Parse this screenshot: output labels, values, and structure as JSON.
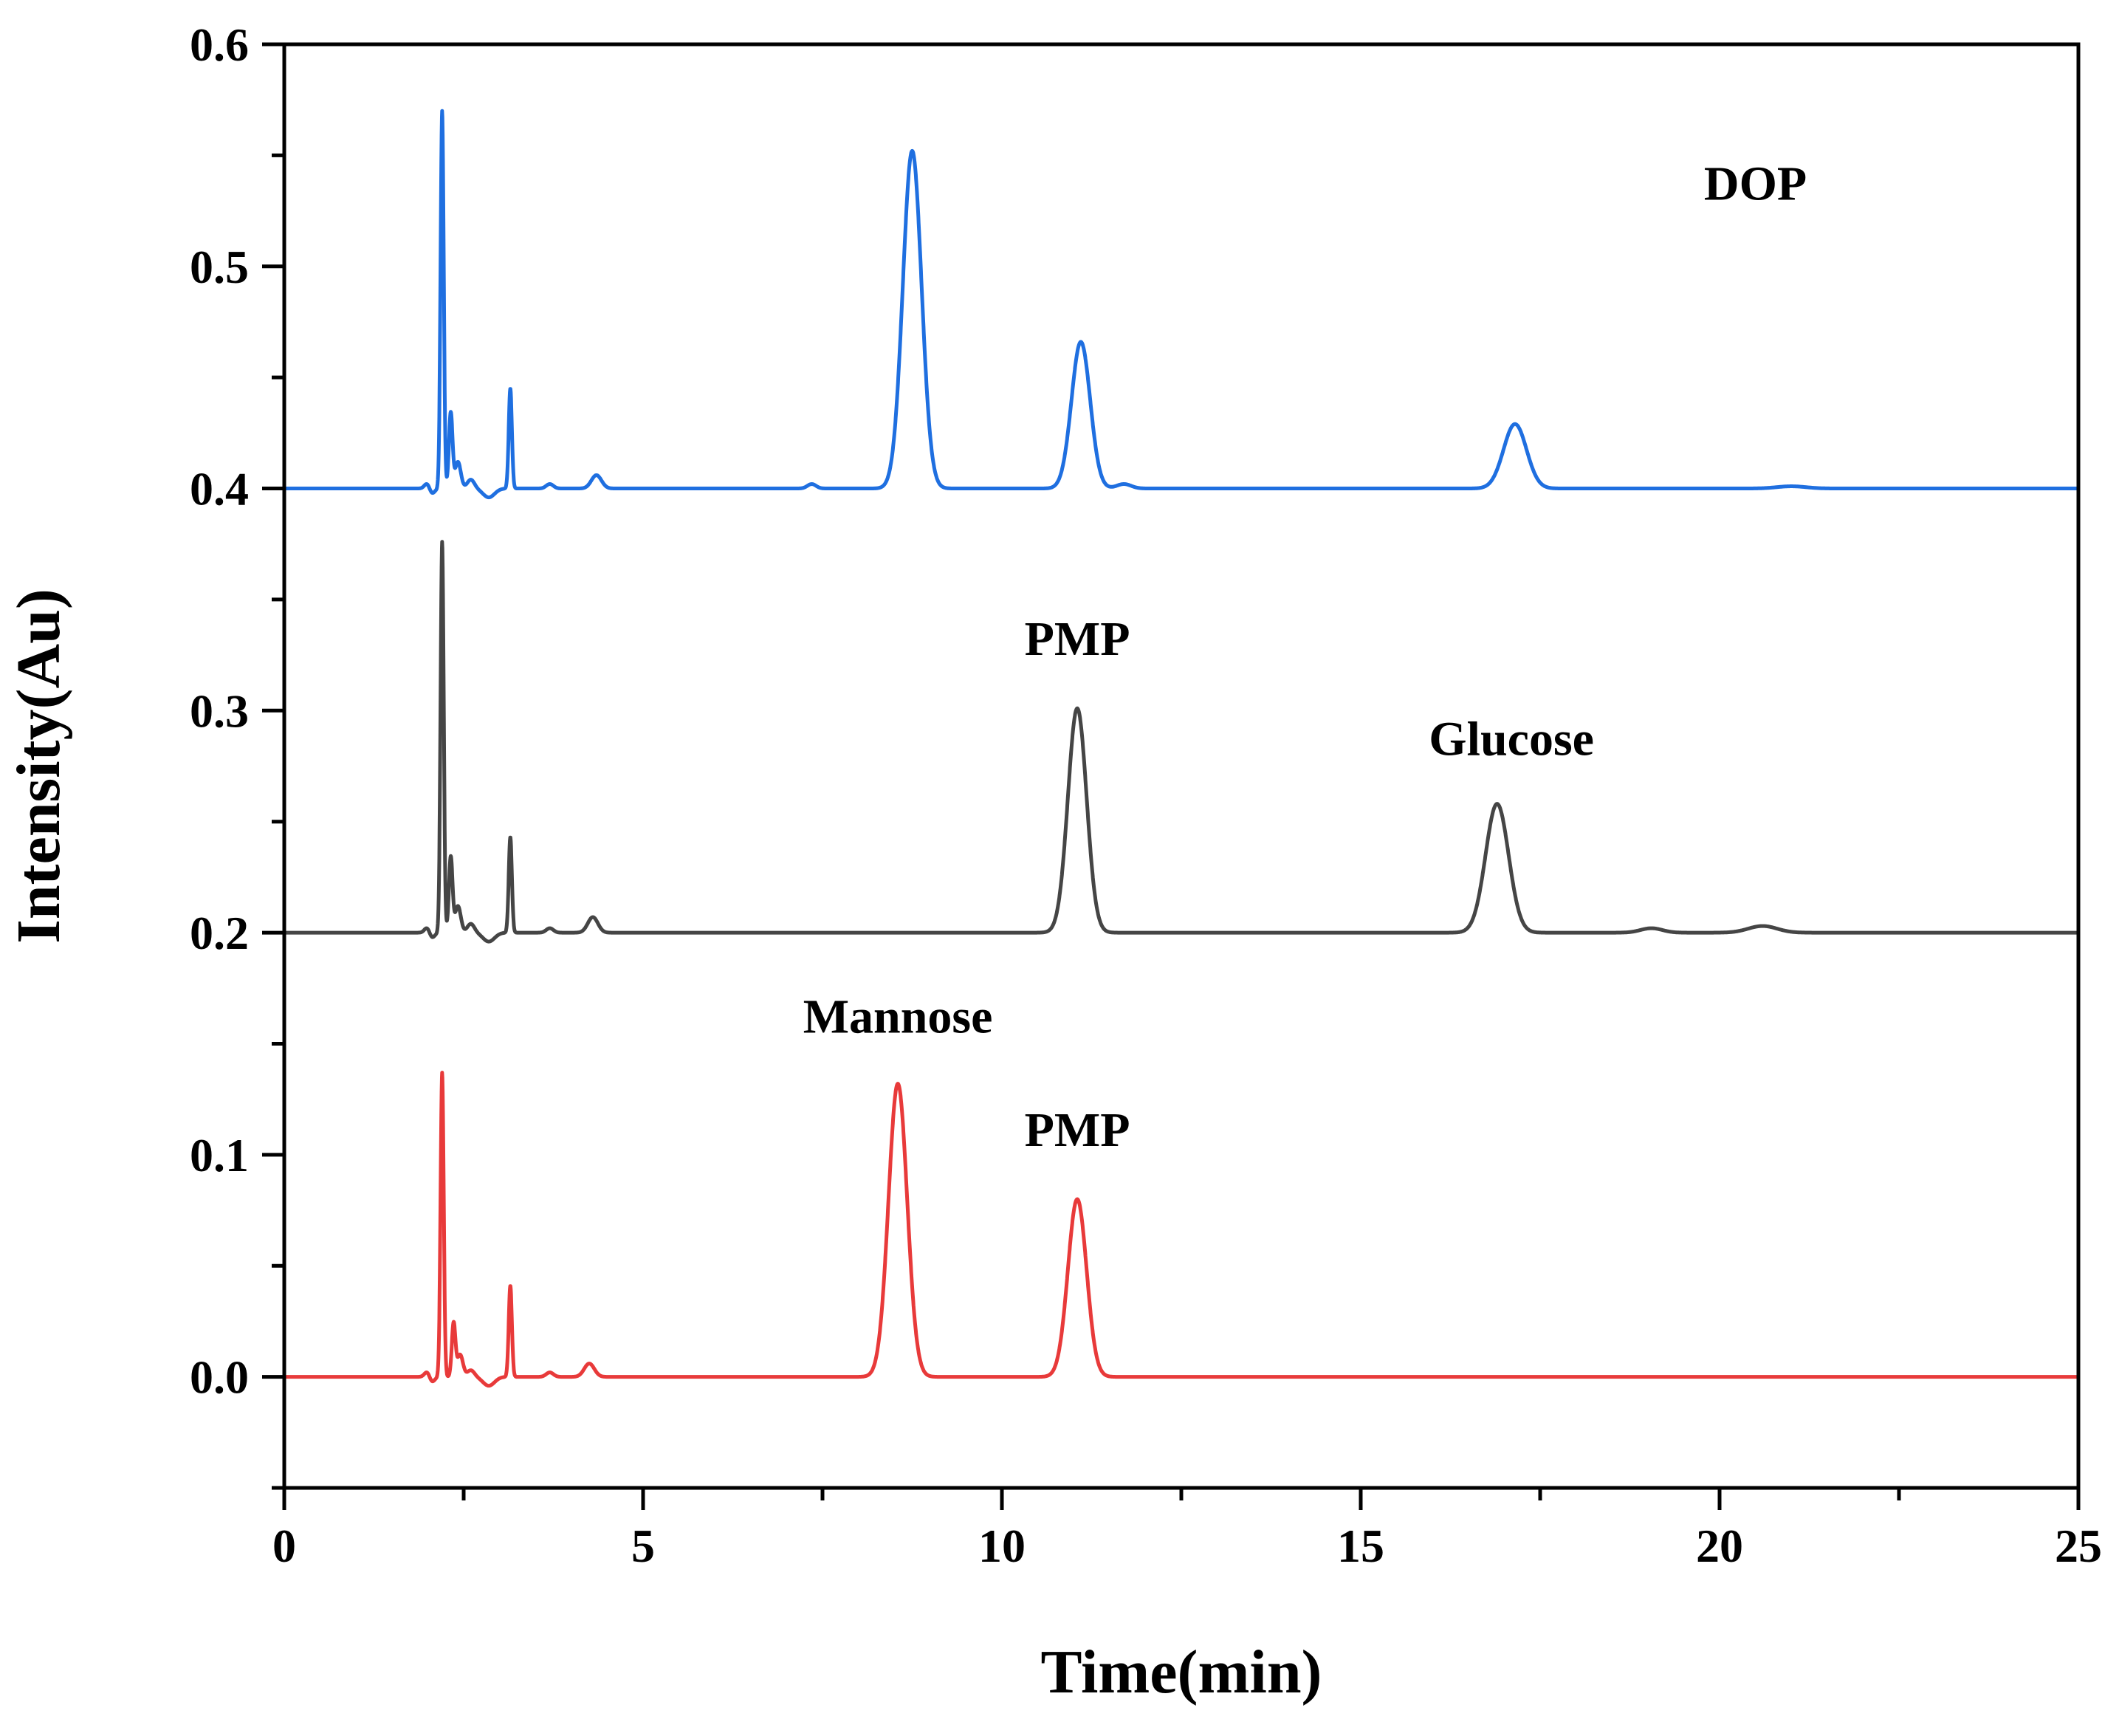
{
  "chart_data": {
    "type": "line",
    "title": "",
    "xlabel": "Time(min)",
    "ylabel": "Intensity(Au)",
    "xlim": [
      0,
      25
    ],
    "ylim": [
      -0.05,
      0.6
    ],
    "grid": false,
    "legend": "none",
    "x_ticks": [
      {
        "value": 0,
        "label": "0"
      },
      {
        "value": 5,
        "label": "5"
      },
      {
        "value": 10,
        "label": "10"
      },
      {
        "value": 15,
        "label": "15"
      },
      {
        "value": 20,
        "label": "20"
      },
      {
        "value": 25,
        "label": "25"
      }
    ],
    "x_minor_step": 2.5,
    "y_ticks": [
      {
        "value": 0.0,
        "label": "0.0"
      },
      {
        "value": 0.1,
        "label": "0.1"
      },
      {
        "value": 0.2,
        "label": "0.2"
      },
      {
        "value": 0.3,
        "label": "0.3"
      },
      {
        "value": 0.4,
        "label": "0.4"
      },
      {
        "value": 0.5,
        "label": "0.5"
      },
      {
        "value": 0.6,
        "label": "0.6"
      }
    ],
    "y_minor_step": 0.05,
    "series": [
      {
        "color": "#1f6fe0",
        "baseline": 0.4,
        "peaks": [
          {
            "x": 2.0,
            "h": 0.003,
            "w": 0.04
          },
          {
            "x": 2.2,
            "h": 0.17,
            "w": 0.022
          },
          {
            "x": 2.32,
            "h": 0.034,
            "w": 0.025
          },
          {
            "x": 2.42,
            "h": 0.012,
            "w": 0.04
          },
          {
            "x": 2.6,
            "h": 0.004,
            "w": 0.05
          },
          {
            "x": 3.15,
            "h": 0.045,
            "w": 0.022
          },
          {
            "x": 3.7,
            "h": 0.002,
            "w": 0.05
          },
          {
            "x": 4.35,
            "h": 0.006,
            "w": 0.07
          },
          {
            "x": 7.35,
            "h": 0.002,
            "w": 0.06
          },
          {
            "x": 8.75,
            "h": 0.152,
            "w": 0.13
          },
          {
            "x": 11.1,
            "h": 0.066,
            "w": 0.13
          },
          {
            "x": 11.7,
            "h": 0.002,
            "w": 0.1
          },
          {
            "x": 17.15,
            "h": 0.029,
            "w": 0.16
          },
          {
            "x": 21.0,
            "h": 0.001,
            "w": 0.2
          }
        ],
        "dips": [
          {
            "x": 2.05,
            "h": 0.003,
            "w": 0.04
          },
          {
            "x": 2.85,
            "h": 0.004,
            "w": 0.08
          }
        ]
      },
      {
        "color": "#454545",
        "baseline": 0.2,
        "peaks": [
          {
            "x": 2.0,
            "h": 0.003,
            "w": 0.04
          },
          {
            "x": 2.2,
            "h": 0.176,
            "w": 0.022
          },
          {
            "x": 2.32,
            "h": 0.034,
            "w": 0.025
          },
          {
            "x": 2.42,
            "h": 0.012,
            "w": 0.04
          },
          {
            "x": 2.6,
            "h": 0.004,
            "w": 0.05
          },
          {
            "x": 3.15,
            "h": 0.043,
            "w": 0.022
          },
          {
            "x": 3.7,
            "h": 0.002,
            "w": 0.05
          },
          {
            "x": 4.3,
            "h": 0.007,
            "w": 0.07
          },
          {
            "x": 11.05,
            "h": 0.101,
            "w": 0.13
          },
          {
            "x": 16.9,
            "h": 0.058,
            "w": 0.16
          },
          {
            "x": 19.05,
            "h": 0.002,
            "w": 0.15
          },
          {
            "x": 20.6,
            "h": 0.003,
            "w": 0.2
          }
        ],
        "dips": [
          {
            "x": 2.05,
            "h": 0.003,
            "w": 0.04
          },
          {
            "x": 2.85,
            "h": 0.004,
            "w": 0.08
          }
        ]
      },
      {
        "color": "#e83a3a",
        "baseline": 0.0,
        "peaks": [
          {
            "x": 2.0,
            "h": 0.003,
            "w": 0.04
          },
          {
            "x": 2.2,
            "h": 0.137,
            "w": 0.022
          },
          {
            "x": 2.36,
            "h": 0.024,
            "w": 0.025
          },
          {
            "x": 2.45,
            "h": 0.01,
            "w": 0.04
          },
          {
            "x": 2.6,
            "h": 0.003,
            "w": 0.05
          },
          {
            "x": 3.15,
            "h": 0.041,
            "w": 0.022
          },
          {
            "x": 3.7,
            "h": 0.002,
            "w": 0.05
          },
          {
            "x": 4.25,
            "h": 0.006,
            "w": 0.07
          },
          {
            "x": 8.55,
            "h": 0.132,
            "w": 0.13
          },
          {
            "x": 11.05,
            "h": 0.08,
            "w": 0.13
          }
        ],
        "dips": [
          {
            "x": 2.05,
            "h": 0.003,
            "w": 0.04
          },
          {
            "x": 2.85,
            "h": 0.004,
            "w": 0.08
          }
        ]
      }
    ],
    "annotations": [
      {
        "text": "DOP",
        "x": 20.5,
        "y": 0.53
      },
      {
        "text": "PMP",
        "x": 11.05,
        "y": 0.325
      },
      {
        "text": "Glucose",
        "x": 17.1,
        "y": 0.28
      },
      {
        "text": "Mannose",
        "x": 8.55,
        "y": 0.155
      },
      {
        "text": "PMP",
        "x": 11.05,
        "y": 0.104
      }
    ]
  }
}
